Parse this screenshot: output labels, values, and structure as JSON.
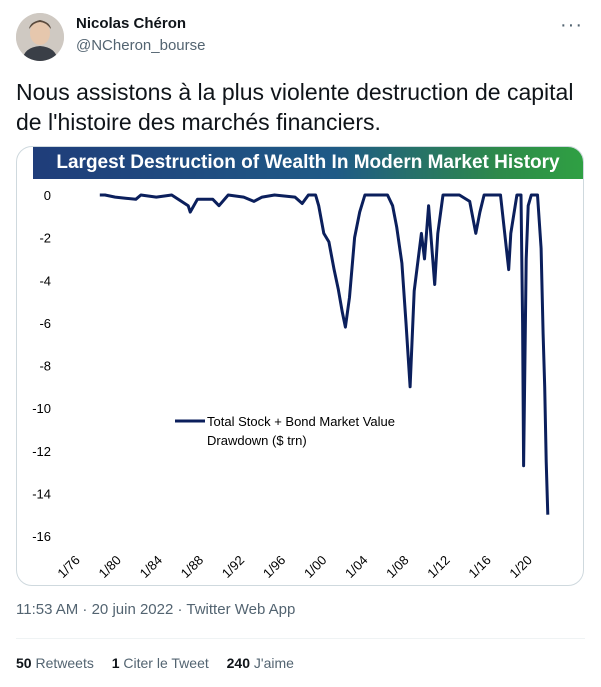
{
  "author": {
    "name": "Nicolas Chéron",
    "handle": "@NCheron_bourse"
  },
  "icons": {
    "more": "more-options-icon",
    "avatar": "profile-photo"
  },
  "tweet": {
    "text": "Nous assistons à la plus violente destruction de capital de l'histoire des marchés financiers.",
    "timestamp": "11:53 AM · 20 juin 2022 · Twitter Web App"
  },
  "stats": {
    "retweets_count": "50",
    "retweets_label": "Retweets",
    "quotes_count": "1",
    "quotes_label": "Citer le Tweet",
    "likes_count": "240",
    "likes_label": "J'aime"
  },
  "chart_data": {
    "type": "line",
    "title": "Largest Destruction of Wealth In Modern Market History",
    "legend": [
      "Total Stock + Bond Market Value",
      "Drawdown ($ trn)"
    ],
    "legend_placement": "center-left",
    "series_color": "#0b1f5c",
    "ylim": [
      -16,
      0
    ],
    "yticks": [
      0,
      -2,
      -4,
      -6,
      -8,
      -10,
      -12,
      -14,
      -16
    ],
    "xlim": [
      1976,
      2023.5
    ],
    "xticks": [
      "1/76",
      "1/80",
      "1/84",
      "1/88",
      "1/92",
      "1/96",
      "1/00",
      "1/04",
      "1/08",
      "1/12",
      "1/16",
      "1/20"
    ],
    "grid": false,
    "series": [
      {
        "x": [
          1979.0,
          1979.5,
          1980.5,
          1981.5,
          1982.5,
          1983.0,
          1984.5,
          1986.0,
          1987.6,
          1987.8,
          1988.5,
          1990.0,
          1990.6,
          1991.5,
          1993.0,
          1994.0,
          1994.8,
          1996.0,
          1998.0,
          1998.7,
          1999.3,
          2000.0,
          2000.3,
          2000.8,
          2001.3,
          2001.8,
          2002.2,
          2002.6,
          2002.9,
          2003.3,
          2003.8,
          2004.3,
          2004.8,
          2006.0,
          2007.0,
          2007.5,
          2007.9,
          2008.4,
          2008.8,
          2009.2,
          2009.6,
          2010.3,
          2010.6,
          2011.0,
          2011.6,
          2011.9,
          2012.4,
          2013.0,
          2014.0,
          2015.0,
          2015.6,
          2016.0,
          2016.4,
          2017.0,
          2018.0,
          2018.8,
          2019.0,
          2019.6,
          2020.0,
          2020.15,
          2020.25,
          2020.5,
          2020.7,
          2021.0,
          2021.6,
          2021.95,
          2022.15,
          2022.3,
          2022.45,
          2022.6
        ],
        "y": [
          0,
          0,
          -0.1,
          -0.15,
          -0.2,
          0,
          -0.1,
          0,
          -0.5,
          -0.8,
          -0.2,
          -0.2,
          -0.5,
          0,
          -0.1,
          -0.3,
          -0.1,
          0,
          -0.1,
          -0.4,
          0,
          0,
          -0.5,
          -1.8,
          -2.2,
          -3.5,
          -4.4,
          -5.5,
          -6.2,
          -4.8,
          -2.0,
          -0.8,
          0,
          0,
          0,
          -0.5,
          -1.5,
          -3.2,
          -6.0,
          -9.0,
          -4.5,
          -1.8,
          -3.0,
          -0.5,
          -4.2,
          -1.8,
          0,
          0,
          0,
          -0.3,
          -1.8,
          -0.8,
          0,
          0,
          0,
          -3.5,
          -1.8,
          0,
          0,
          -6.0,
          -12.7,
          -3.0,
          -0.5,
          0,
          0,
          -2.5,
          -6.5,
          -9.0,
          -12.5,
          -15.0
        ]
      }
    ]
  }
}
